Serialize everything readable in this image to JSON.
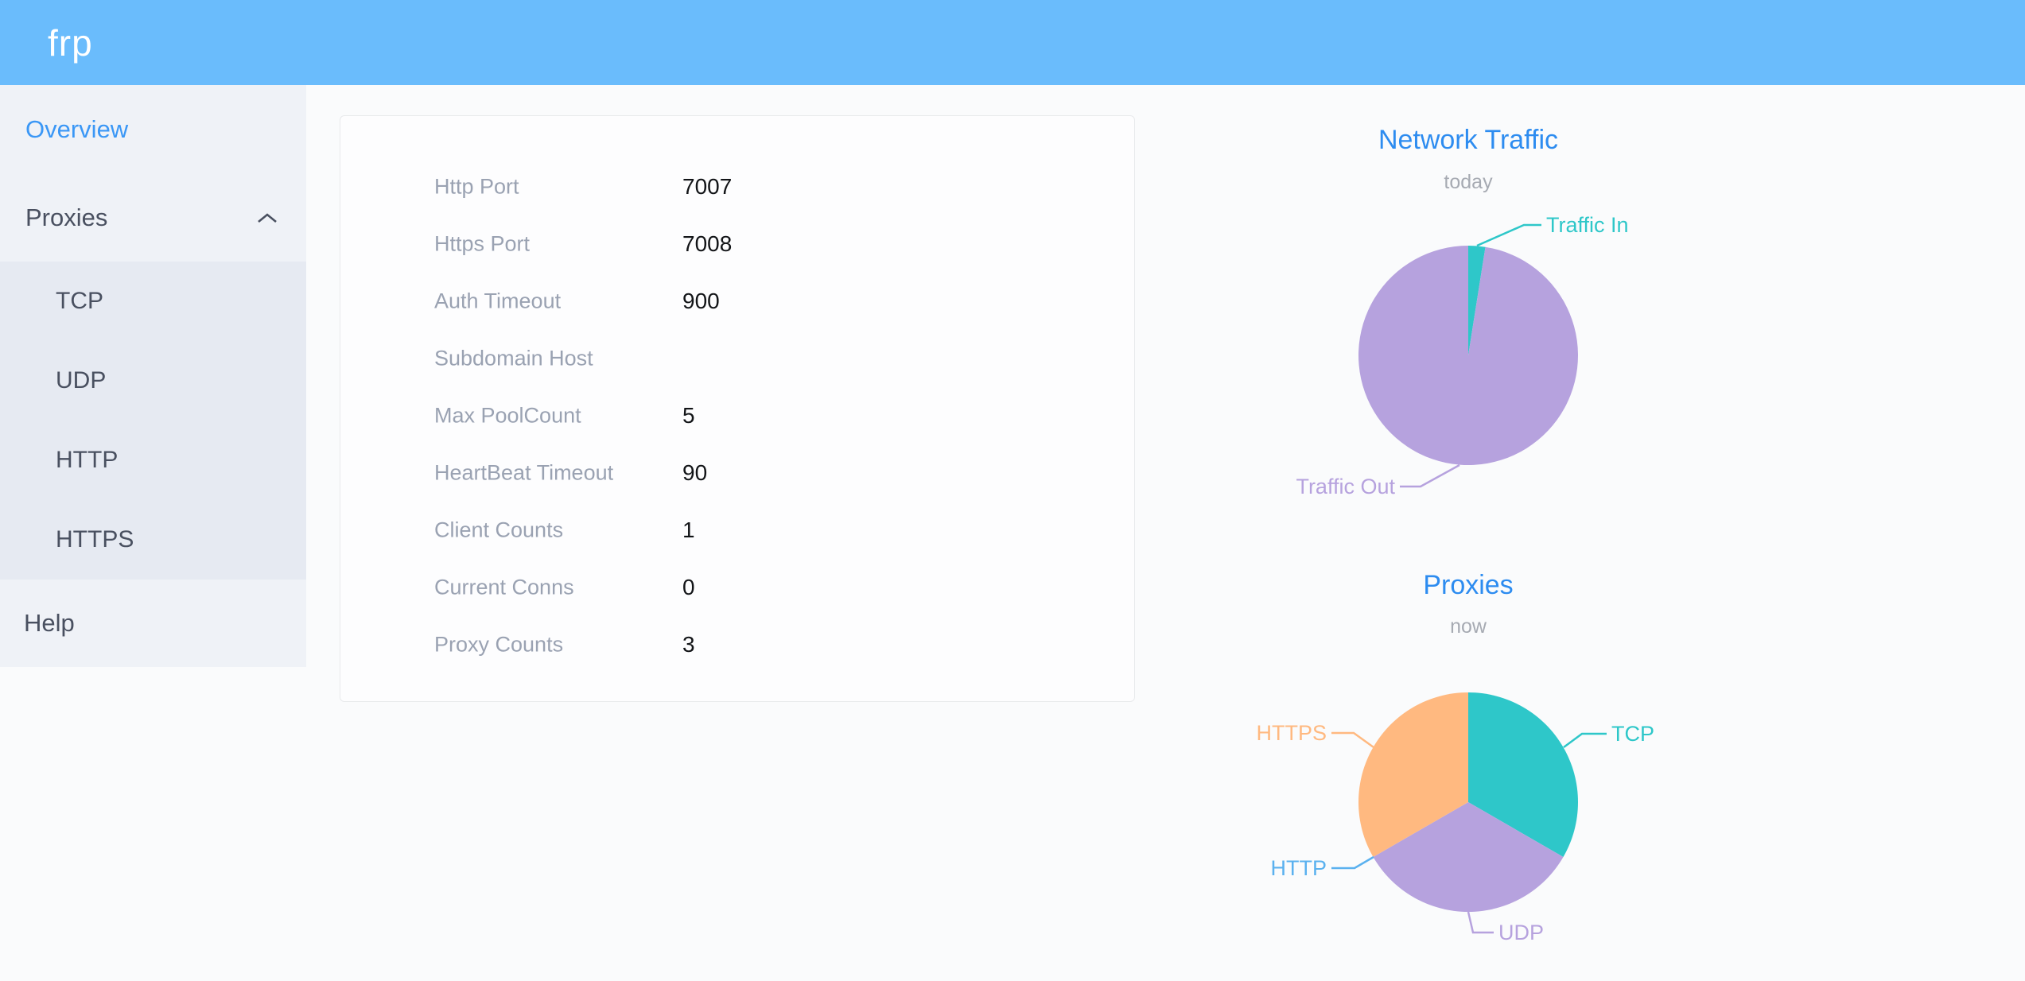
{
  "header": {
    "logo": "frp"
  },
  "sidebar": {
    "overview": "Overview",
    "proxies": "Proxies",
    "submenu": [
      "TCP",
      "UDP",
      "HTTP",
      "HTTPS"
    ],
    "help": "Help",
    "active_item": "Overview",
    "active_color": "#3a97f6"
  },
  "server_info": {
    "rows": [
      {
        "label": "Http Port",
        "value": "7007"
      },
      {
        "label": "Https Port",
        "value": "7008"
      },
      {
        "label": "Auth Timeout",
        "value": "900"
      },
      {
        "label": "Subdomain Host",
        "value": ""
      },
      {
        "label": "Max PoolCount",
        "value": "5"
      },
      {
        "label": "HeartBeat Timeout",
        "value": "90"
      },
      {
        "label": "Client Counts",
        "value": "1"
      },
      {
        "label": "Current Conns",
        "value": "0"
      },
      {
        "label": "Proxy Counts",
        "value": "3"
      }
    ]
  },
  "chart_data": [
    {
      "type": "pie",
      "title": "Network Traffic",
      "subtitle": "today",
      "title_color": "#2d8cf0",
      "subtitle_color": "#a6aab2",
      "legend_position": "callout-labels",
      "slices": [
        {
          "label": "Traffic In",
          "value": 2.5,
          "color": "#2ec7c9"
        },
        {
          "label": "Traffic Out",
          "value": 97.5,
          "color": "#b6a2de"
        }
      ]
    },
    {
      "type": "pie",
      "title": "Proxies",
      "subtitle": "now",
      "title_color": "#2d8cf0",
      "subtitle_color": "#a6aab2",
      "legend_position": "callout-labels",
      "slices": [
        {
          "label": "TCP",
          "value": 1,
          "color": "#2ec7c9"
        },
        {
          "label": "UDP",
          "value": 1,
          "color": "#b6a2de"
        },
        {
          "label": "HTTP",
          "value": 0,
          "color": "#5ab1ef"
        },
        {
          "label": "HTTPS",
          "value": 1,
          "color": "#ffb980"
        }
      ]
    }
  ],
  "colors": {
    "header_bg": "#6abcfc",
    "sidebar_bg": "#eff2f7",
    "submenu_bg": "#e6eaf2",
    "sidebar_text": "#495060",
    "active_link": "#3a97f6",
    "card_border": "#e8eaec",
    "label_gray": "#9aa2b2",
    "value_dark": "#121417"
  }
}
